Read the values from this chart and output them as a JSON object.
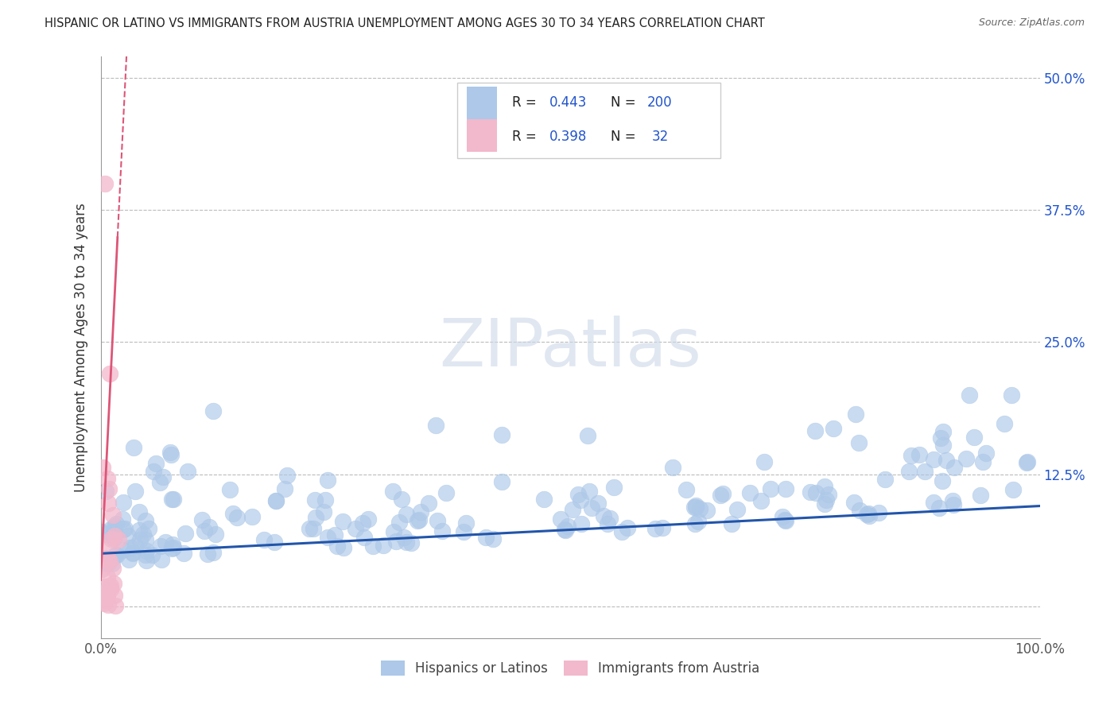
{
  "title": "HISPANIC OR LATINO VS IMMIGRANTS FROM AUSTRIA UNEMPLOYMENT AMONG AGES 30 TO 34 YEARS CORRELATION CHART",
  "source": "Source: ZipAtlas.com",
  "ylabel": "Unemployment Among Ages 30 to 34 years",
  "xlim": [
    0,
    100
  ],
  "ylim": [
    -3,
    52
  ],
  "yticks": [
    0,
    12.5,
    25,
    37.5,
    50
  ],
  "yticklabels_right": [
    "",
    "12.5%",
    "25.0%",
    "37.5%",
    "50.0%"
  ],
  "blue_color": "#adc8e8",
  "pink_color": "#f2b8cc",
  "blue_line_color": "#2255aa",
  "pink_line_color": "#dd5577",
  "grid_color": "#bbbbbb",
  "watermark_color": "#ccd8e8",
  "blue_n": 200,
  "pink_n": 32,
  "blue_R": 0.443,
  "pink_R": 0.398,
  "blue_seed": 42,
  "pink_seed": 99,
  "legend_color": "#2255cc"
}
